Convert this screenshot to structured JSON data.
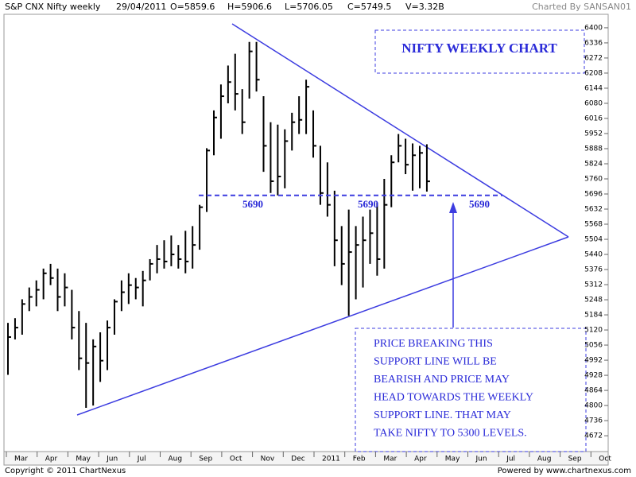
{
  "header": {
    "symbol": "S&P CNX Nifty weekly",
    "date": "29/04/2011",
    "open": "O=5859.6",
    "high": "H=5906.6",
    "low": "L=5706.05",
    "close": "C=5749.5",
    "volume": "V=3.32B",
    "credit": "Charted By SANSAN01"
  },
  "chart_data": {
    "type": "ohlc",
    "title": "NIFTY WEEKLY CHART",
    "color": "#000000",
    "categories": [
      null,
      null,
      null,
      null,
      null,
      null,
      null,
      null,
      null,
      null,
      null,
      null,
      null,
      null,
      null,
      null,
      null,
      null,
      null,
      null,
      null,
      null,
      null,
      null,
      null,
      null,
      null,
      null,
      null,
      null,
      null,
      null,
      null,
      null,
      null,
      null,
      null,
      null,
      null,
      null,
      null,
      null,
      null,
      null,
      null,
      null,
      null,
      null,
      null,
      null,
      null,
      null,
      null,
      null,
      null,
      null,
      null,
      null,
      null,
      null
    ],
    "high": [
      5150,
      5170,
      5250,
      5300,
      5330,
      5380,
      5400,
      5380,
      5360,
      5290,
      5200,
      5150,
      5080,
      5110,
      5160,
      5250,
      5330,
      5360,
      5340,
      5370,
      5420,
      5480,
      5500,
      5520,
      5480,
      5540,
      5560,
      5650,
      5890,
      6050,
      6160,
      6240,
      6290,
      6140,
      6340,
      6340,
      6110,
      6000,
      5990,
      5970,
      6040,
      6110,
      6180,
      6050,
      5900,
      5830,
      5710,
      5560,
      5630,
      5560,
      5600,
      5630,
      5660,
      5760,
      5860,
      5950,
      5930,
      5910,
      5900,
      5906.6
    ],
    "low": [
      4930,
      5080,
      5100,
      5200,
      5220,
      5250,
      5310,
      5200,
      5220,
      5080,
      4950,
      4790,
      4800,
      4900,
      4950,
      5100,
      5200,
      5230,
      5250,
      5220,
      5330,
      5360,
      5380,
      5390,
      5380,
      5360,
      5380,
      5460,
      5620,
      5860,
      5930,
      6080,
      6050,
      5950,
      6100,
      6130,
      5790,
      5700,
      5690,
      5720,
      5880,
      5950,
      5950,
      5850,
      5650,
      5600,
      5390,
      5310,
      5180,
      5250,
      5300,
      5400,
      5350,
      5380,
      5640,
      5830,
      5780,
      5710,
      5720,
      5706.05
    ],
    "close": [
      5090,
      5130,
      5230,
      5260,
      5290,
      5360,
      5340,
      5260,
      5300,
      5130,
      5000,
      4980,
      5050,
      4990,
      5130,
      5240,
      5280,
      5310,
      5300,
      5330,
      5400,
      5420,
      5410,
      5440,
      5420,
      5410,
      5480,
      5640,
      5880,
      6020,
      6110,
      6170,
      6120,
      6000,
      6300,
      6180,
      5900,
      5750,
      5770,
      5920,
      6000,
      6010,
      6150,
      5900,
      5700,
      5650,
      5500,
      5400,
      5450,
      5480,
      5500,
      5530,
      5420,
      5650,
      5830,
      5900,
      5820,
      5860,
      5870,
      5749.5
    ],
    "months": [
      "Mar",
      "Apr",
      "May",
      "Jun",
      "Jul",
      "Aug",
      "Sep",
      "Oct",
      "Nov",
      "Dec",
      "2011",
      "Feb",
      "Mar",
      "Apr",
      "May",
      "Jun",
      "Jul",
      "Aug",
      "Sep",
      "Oct"
    ],
    "ylim": [
      4605,
      6457
    ],
    "yticks": [
      4672,
      4736,
      4800,
      4864,
      4928,
      4992,
      5056,
      5120,
      5184,
      5248,
      5312,
      5376,
      5440,
      5504,
      5568,
      5632,
      5696,
      5760,
      5824,
      5888,
      5952,
      6016,
      6080,
      6144,
      6208,
      6272,
      6336,
      6400
    ],
    "support": 5690,
    "annotation": [
      "PRICE BREAKING THIS",
      "SUPPORT LINE WILL BE",
      "BEARISH AND PRICE MAY",
      "HEAD TOWARDS THE WEEKLY",
      "SUPPORT LINE. THAT MAY",
      "TAKE NIFTY TO 5300 LEVELS."
    ]
  },
  "footer": {
    "copyright": "Copyright © 2011 ChartNexus",
    "powered": "Powered by www.chartnexus.com"
  }
}
